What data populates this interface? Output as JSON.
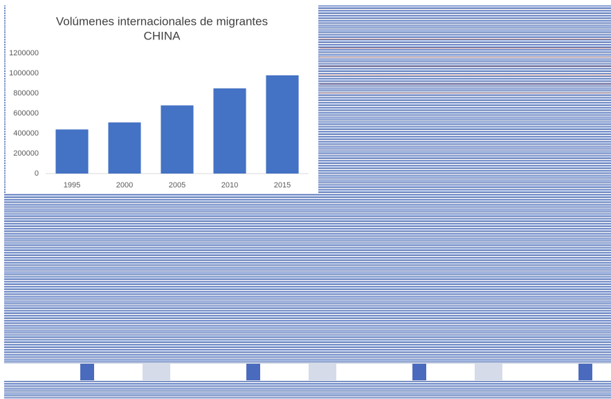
{
  "chart_data": {
    "type": "bar",
    "title": "Volúmenes internacionales de migrantes",
    "subtitle": "CHINA",
    "categories": [
      "1995",
      "2000",
      "2005",
      "2010",
      "2015"
    ],
    "values": [
      440000,
      510000,
      680000,
      850000,
      980000
    ],
    "color": "#4472c4",
    "ylim": [
      0,
      1200000
    ],
    "yticks": [
      0,
      200000,
      400000,
      600000,
      800000,
      1000000,
      1200000
    ],
    "grid": false
  }
}
